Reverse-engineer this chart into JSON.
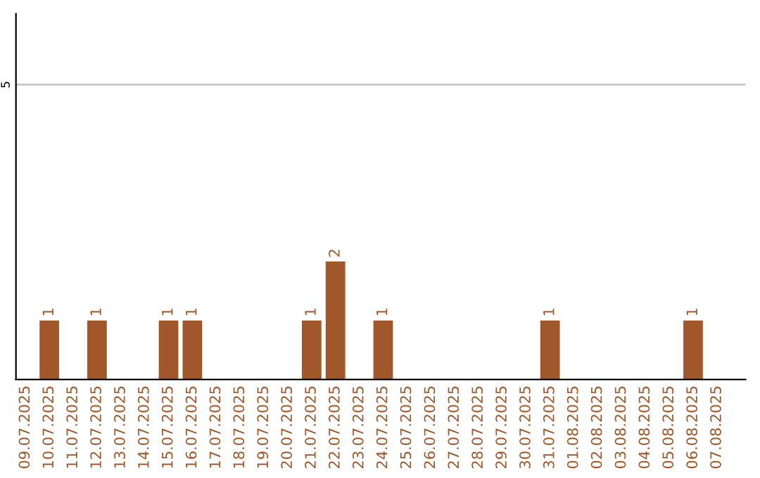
{
  "chart_data": {
    "type": "bar",
    "categories": [
      "09.07.2025",
      "10.07.2025",
      "11.07.2025",
      "12.07.2025",
      "13.07.2025",
      "14.07.2025",
      "15.07.2025",
      "16.07.2025",
      "17.07.2025",
      "18.07.2025",
      "19.07.2025",
      "20.07.2025",
      "21.07.2025",
      "22.07.2025",
      "23.07.2025",
      "24.07.2025",
      "25.07.2025",
      "26.07.2025",
      "27.07.2025",
      "28.07.2025",
      "29.07.2025",
      "30.07.2025",
      "31.07.2025",
      "01.08.2025",
      "02.08.2025",
      "03.08.2025",
      "04.08.2025",
      "05.08.2025",
      "06.08.2025",
      "07.08.2025"
    ],
    "values": [
      0,
      1,
      0,
      1,
      0,
      0,
      1,
      1,
      0,
      0,
      0,
      0,
      1,
      2,
      0,
      1,
      0,
      0,
      0,
      0,
      0,
      0,
      1,
      0,
      0,
      0,
      0,
      0,
      1,
      0
    ],
    "color": "#a0572a",
    "value_labels": [
      null,
      "1",
      null,
      "1",
      null,
      null,
      "1",
      "1",
      null,
      null,
      null,
      null,
      "1",
      "2",
      null,
      "1",
      null,
      null,
      null,
      null,
      null,
      null,
      "1",
      null,
      null,
      null,
      null,
      null,
      "1",
      null
    ],
    "ylim": [
      0,
      6.2
    ],
    "yticks": [
      5
    ],
    "grid": "y",
    "legend": false
  }
}
